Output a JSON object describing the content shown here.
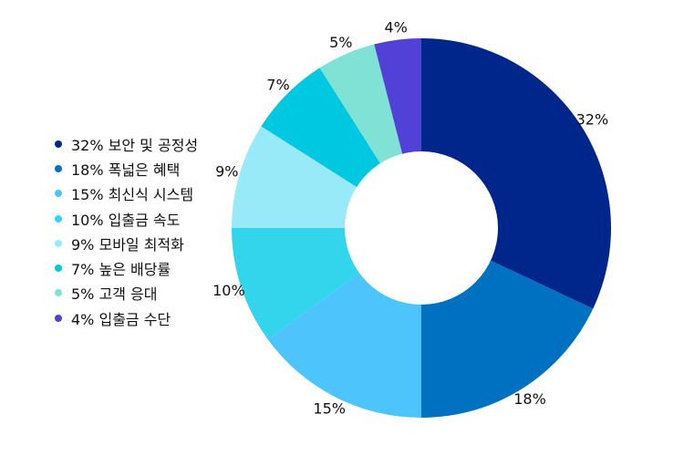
{
  "chart_data": {
    "type": "pie",
    "style": "donut",
    "start": "12 o'clock",
    "direction": "clockwise",
    "legend_position": "left",
    "slices": [
      {
        "value": 32,
        "label": "32%",
        "legend": "32% 보안 및 공정성",
        "color": "#00268C"
      },
      {
        "value": 18,
        "label": "18%",
        "legend": "18% 폭넓은 혜택",
        "color": "#0071C1"
      },
      {
        "value": 15,
        "label": "15%",
        "legend": "15% 최신식 시스템",
        "color": "#4DC4FC"
      },
      {
        "value": 10,
        "label": "10%",
        "legend": "10% 입출금 속도",
        "color": "#33D5EC"
      },
      {
        "value": 9,
        "label": "9%",
        "legend": "9% 모바일 최적화",
        "color": "#98EAF8"
      },
      {
        "value": 7,
        "label": "7%",
        "legend": "7% 높은 배당률",
        "color": "#00C8E1"
      },
      {
        "value": 5,
        "label": "5%",
        "legend": "5% 고객 응대",
        "color": "#7FE2D5"
      },
      {
        "value": 4,
        "label": "4%",
        "legend": "4% 입출금 수단",
        "color": "#5141D6"
      }
    ]
  }
}
